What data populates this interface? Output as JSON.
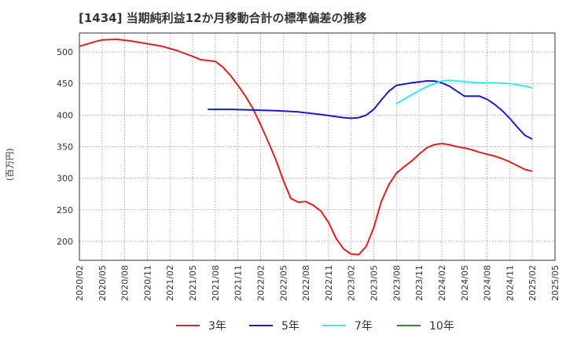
{
  "title": "[1434]  当期純利益12か月移動合計の標準偏差の推移",
  "ylabel": "(百万円)",
  "chart_data": {
    "type": "line",
    "ylim": [
      170,
      530
    ],
    "yticks": [
      200,
      250,
      300,
      350,
      400,
      450,
      500
    ],
    "x_range": [
      "2020/02",
      "2025/05"
    ],
    "x_ticks": [
      "2020/02",
      "2020/05",
      "2020/08",
      "2020/11",
      "2021/02",
      "2021/05",
      "2021/08",
      "2021/11",
      "2022/02",
      "2022/05",
      "2022/08",
      "2022/11",
      "2023/02",
      "2023/05",
      "2023/08",
      "2023/11",
      "2024/02",
      "2024/05",
      "2024/08",
      "2024/11",
      "2025/02",
      "2025/05"
    ],
    "grid": true,
    "legend_position": "bottom",
    "series": [
      {
        "name": "3年",
        "color": "#dd2020",
        "points": [
          [
            "2020/02",
            509
          ],
          [
            "2020/04",
            516
          ],
          [
            "2020/05",
            519
          ],
          [
            "2020/07",
            520
          ],
          [
            "2020/09",
            517
          ],
          [
            "2020/11",
            513
          ],
          [
            "2021/01",
            509
          ],
          [
            "2021/03",
            502
          ],
          [
            "2021/05",
            493
          ],
          [
            "2021/06",
            488
          ],
          [
            "2021/08",
            485
          ],
          [
            "2021/09",
            476
          ],
          [
            "2021/10",
            463
          ],
          [
            "2021/11",
            447
          ],
          [
            "2021/12",
            430
          ],
          [
            "2022/01",
            410
          ],
          [
            "2022/02",
            385
          ],
          [
            "2022/03",
            358
          ],
          [
            "2022/04",
            330
          ],
          [
            "2022/05",
            297
          ],
          [
            "2022/06",
            268
          ],
          [
            "2022/07",
            262
          ],
          [
            "2022/08",
            263
          ],
          [
            "2022/09",
            257
          ],
          [
            "2022/10",
            248
          ],
          [
            "2022/11",
            230
          ],
          [
            "2022/12",
            205
          ],
          [
            "2023/01",
            188
          ],
          [
            "2023/02",
            180
          ],
          [
            "2023/03",
            179
          ],
          [
            "2023/04",
            192
          ],
          [
            "2023/05",
            222
          ],
          [
            "2023/06",
            263
          ],
          [
            "2023/07",
            290
          ],
          [
            "2023/08",
            308
          ],
          [
            "2023/09",
            318
          ],
          [
            "2023/10",
            327
          ],
          [
            "2023/11",
            338
          ],
          [
            "2023/12",
            348
          ],
          [
            "2024/01",
            353
          ],
          [
            "2024/02",
            355
          ],
          [
            "2024/03",
            353
          ],
          [
            "2024/04",
            350
          ],
          [
            "2024/05",
            348
          ],
          [
            "2024/06",
            345
          ],
          [
            "2024/07",
            341
          ],
          [
            "2024/08",
            338
          ],
          [
            "2024/09",
            335
          ],
          [
            "2024/10",
            331
          ],
          [
            "2024/11",
            326
          ],
          [
            "2024/12",
            320
          ],
          [
            "2025/01",
            314
          ],
          [
            "2025/02",
            311
          ]
        ]
      },
      {
        "name": "5年",
        "color": "#1a1acc",
        "points": [
          [
            "2021/07",
            409
          ],
          [
            "2021/10",
            409
          ],
          [
            "2022/01",
            408
          ],
          [
            "2022/04",
            407
          ],
          [
            "2022/07",
            405
          ],
          [
            "2022/10",
            401
          ],
          [
            "2023/01",
            396
          ],
          [
            "2023/02",
            395
          ],
          [
            "2023/03",
            396
          ],
          [
            "2023/04",
            400
          ],
          [
            "2023/05",
            409
          ],
          [
            "2023/06",
            424
          ],
          [
            "2023/07",
            438
          ],
          [
            "2023/08",
            447
          ],
          [
            "2023/10",
            451
          ],
          [
            "2023/12",
            454
          ],
          [
            "2024/01",
            454
          ],
          [
            "2024/02",
            451
          ],
          [
            "2024/03",
            446
          ],
          [
            "2024/04",
            438
          ],
          [
            "2024/05",
            430
          ],
          [
            "2024/07",
            430
          ],
          [
            "2024/08",
            425
          ],
          [
            "2024/09",
            417
          ],
          [
            "2024/10",
            407
          ],
          [
            "2024/11",
            395
          ],
          [
            "2024/12",
            381
          ],
          [
            "2025/01",
            368
          ],
          [
            "2025/02",
            362
          ]
        ]
      },
      {
        "name": "7年",
        "color": "#33e8f0",
        "points": [
          [
            "2023/08",
            418
          ],
          [
            "2023/10",
            432
          ],
          [
            "2023/12",
            445
          ],
          [
            "2024/02",
            454
          ],
          [
            "2024/03",
            455
          ],
          [
            "2024/05",
            453
          ],
          [
            "2024/07",
            451
          ],
          [
            "2024/09",
            451
          ],
          [
            "2024/11",
            450
          ],
          [
            "2025/01",
            446
          ],
          [
            "2025/02",
            443
          ]
        ]
      },
      {
        "name": "10年",
        "color": "#2a8a2a",
        "points": []
      }
    ]
  }
}
